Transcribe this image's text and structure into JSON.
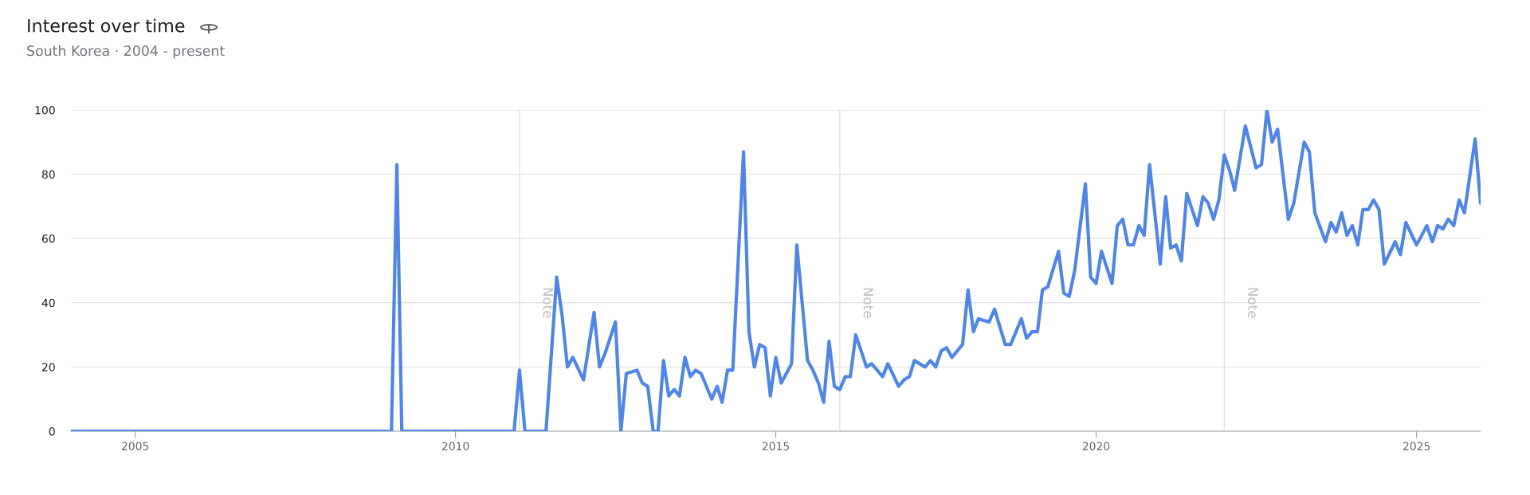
{
  "chart_data": {
    "type": "line",
    "title": "Interest over time",
    "subtitle": "South Korea · 2004 - present",
    "x": [
      "2004-01",
      "2009-01",
      "2009-02",
      "2009-03",
      "2010-12",
      "2011-01",
      "2011-02",
      "2011-06",
      "2011-08",
      "2011-09",
      "2011-10",
      "2011-11",
      "2012-01",
      "2012-03",
      "2012-04",
      "2012-05",
      "2012-07",
      "2012-08",
      "2012-09",
      "2012-11",
      "2012-12",
      "2013-01",
      "2013-02",
      "2013-03",
      "2013-04",
      "2013-05",
      "2013-06",
      "2013-07",
      "2013-08",
      "2013-09",
      "2013-10",
      "2013-11",
      "2014-01",
      "2014-02",
      "2014-03",
      "2014-04",
      "2014-05",
      "2014-07",
      "2014-08",
      "2014-09",
      "2014-10",
      "2014-11",
      "2014-12",
      "2015-01",
      "2015-02",
      "2015-04",
      "2015-05",
      "2015-07",
      "2015-08",
      "2015-09",
      "2015-10",
      "2015-11",
      "2015-12",
      "2016-01",
      "2016-02",
      "2016-03",
      "2016-04",
      "2016-06",
      "2016-07",
      "2016-09",
      "2016-10",
      "2016-12",
      "2017-01",
      "2017-02",
      "2017-03",
      "2017-05",
      "2017-06",
      "2017-07",
      "2017-08",
      "2017-09",
      "2017-10",
      "2017-12",
      "2018-01",
      "2018-02",
      "2018-03",
      "2018-05",
      "2018-06",
      "2018-08",
      "2018-09",
      "2018-11",
      "2018-12",
      "2019-01",
      "2019-02",
      "2019-03",
      "2019-04",
      "2019-06",
      "2019-07",
      "2019-08",
      "2019-09",
      "2019-11",
      "2019-12",
      "2020-01",
      "2020-02",
      "2020-04",
      "2020-05",
      "2020-06",
      "2020-07",
      "2020-08",
      "2020-09",
      "2020-10",
      "2020-11",
      "2021-01",
      "2021-02",
      "2021-03",
      "2021-04",
      "2021-05",
      "2021-06",
      "2021-08",
      "2021-09",
      "2021-10",
      "2021-11",
      "2021-12",
      "2022-01",
      "2022-02",
      "2022-03",
      "2022-05",
      "2022-07",
      "2022-08",
      "2022-09",
      "2022-10",
      "2022-11",
      "2023-01",
      "2023-02",
      "2023-04",
      "2023-05",
      "2023-06",
      "2023-08",
      "2023-09",
      "2023-10",
      "2023-11",
      "2023-12",
      "2024-01",
      "2024-02",
      "2024-03",
      "2024-04",
      "2024-05",
      "2024-06",
      "2024-07",
      "2024-09",
      "2024-10",
      "2024-11",
      "2025-01",
      "2025-03",
      "2025-04",
      "2025-05",
      "2025-06",
      "2025-07",
      "2025-08",
      "2025-09",
      "2025-10",
      "2025-12",
      "2026-01"
    ],
    "series": [
      {
        "color": "#4f86e3",
        "values": [
          0,
          0,
          83,
          0,
          0,
          19,
          0,
          0,
          48,
          36,
          20,
          23,
          16,
          37,
          20,
          24,
          34,
          0,
          18,
          19,
          15,
          14,
          0,
          0,
          22,
          11,
          13,
          11,
          23,
          17,
          19,
          18,
          10,
          14,
          9,
          19,
          19,
          87,
          31,
          20,
          27,
          26,
          11,
          23,
          15,
          21,
          58,
          22,
          19,
          15,
          9,
          28,
          14,
          13,
          17,
          17,
          30,
          20,
          21,
          17,
          21,
          14,
          16,
          17,
          22,
          20,
          22,
          20,
          25,
          26,
          23,
          27,
          44,
          31,
          35,
          34,
          38,
          27,
          27,
          35,
          29,
          31,
          31,
          44,
          45,
          56,
          43,
          42,
          50,
          77,
          48,
          46,
          56,
          46,
          64,
          66,
          58,
          58,
          64,
          61,
          83,
          52,
          73,
          57,
          58,
          53,
          74,
          64,
          73,
          71,
          66,
          72,
          86,
          81,
          75,
          95,
          82,
          83,
          100,
          90,
          94,
          66,
          71,
          90,
          87,
          68,
          59,
          65,
          62,
          68,
          61,
          64,
          58,
          69,
          69,
          72,
          69,
          52,
          59,
          55,
          65,
          58,
          64,
          59,
          64,
          63,
          66,
          64,
          72,
          68,
          91,
          71
        ]
      }
    ],
    "xlim": [
      "2004-01",
      "2026-01"
    ],
    "xticks": [
      "2005",
      "2010",
      "2015",
      "2020",
      "2025"
    ],
    "ylim": [
      0,
      100
    ],
    "yticks": [
      0,
      20,
      40,
      60,
      80,
      100
    ],
    "grid": "y",
    "ref_lines": [
      {
        "axis": "x",
        "value": "2011-01",
        "label": "Note",
        "color": "#e0e0e0"
      },
      {
        "axis": "x",
        "value": "2016-01",
        "label": "Note",
        "color": "#e0e0e0"
      },
      {
        "axis": "x",
        "value": "2022-01",
        "label": "Note",
        "color": "#e0e0e0"
      }
    ]
  }
}
